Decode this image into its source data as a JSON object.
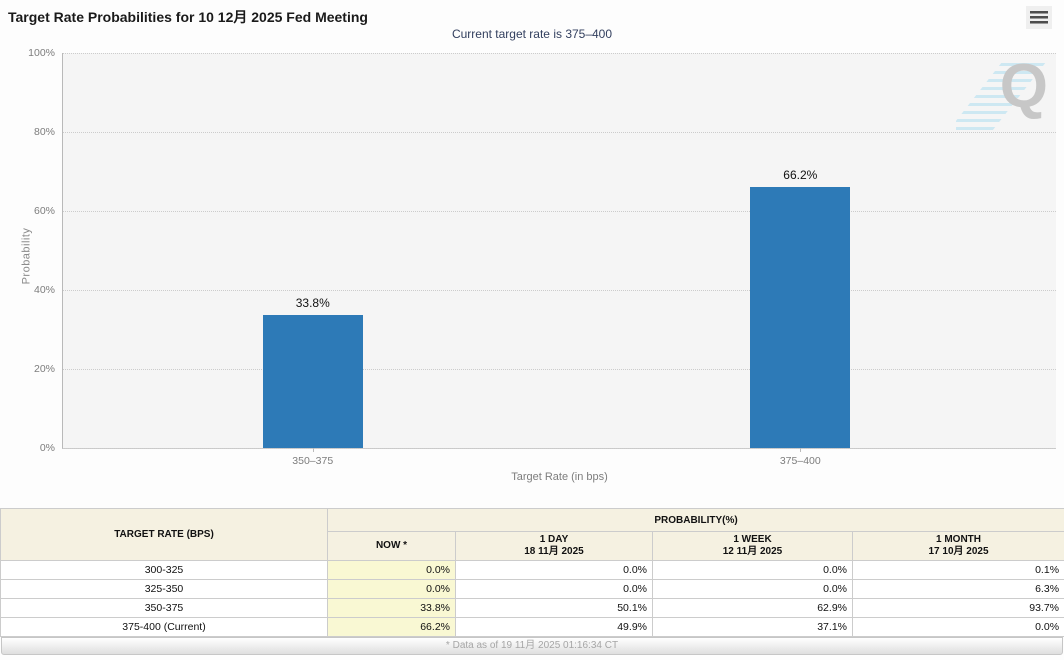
{
  "header": {
    "title": "Target Rate Probabilities for 10 12月 2025 Fed Meeting",
    "menu_icon": "hamburger-menu-icon"
  },
  "subtitle": "Current target rate is 375–400",
  "chart_data": {
    "type": "bar",
    "title": "Target Rate Probabilities for 10 12月 2025 Fed Meeting",
    "subtitle": "Current target rate is 375–400",
    "categories": [
      "350–375",
      "375–400"
    ],
    "values": [
      33.8,
      66.2
    ],
    "value_labels": [
      "33.8%",
      "66.2%"
    ],
    "xlabel": "Target Rate (in bps)",
    "ylabel": "Probability",
    "ylim": [
      0,
      100
    ],
    "yticks": [
      0,
      20,
      40,
      60,
      80,
      100
    ],
    "ytick_suffix": "%",
    "grid": "dotted-horizontal",
    "legend": "none",
    "bar_color": "#2d7ab7",
    "plot_background": "#f5f5f5"
  },
  "watermark": {
    "letter": "Q",
    "name": "quikstrike-logo"
  },
  "table": {
    "col1_header": "TARGET RATE (BPS)",
    "group_header": "PROBABILITY(%)",
    "columns": [
      {
        "line1": "NOW *",
        "line2": ""
      },
      {
        "line1": "1 DAY",
        "line2": "18 11月 2025"
      },
      {
        "line1": "1 WEEK",
        "line2": "12 11月 2025"
      },
      {
        "line1": "1 MONTH",
        "line2": "17 10月 2025"
      }
    ],
    "rows": [
      {
        "label": "300-325",
        "now": "0.0%",
        "day": "0.0%",
        "week": "0.0%",
        "month": "0.1%"
      },
      {
        "label": "325-350",
        "now": "0.0%",
        "day": "0.0%",
        "week": "0.0%",
        "month": "6.3%"
      },
      {
        "label": "350-375",
        "now": "33.8%",
        "day": "50.1%",
        "week": "62.9%",
        "month": "93.7%"
      },
      {
        "label": "375-400 (Current)",
        "now": "66.2%",
        "day": "49.9%",
        "week": "37.1%",
        "month": "0.0%"
      }
    ],
    "footnote": "* Data as of 19 11月 2025 01:16:34 CT"
  }
}
